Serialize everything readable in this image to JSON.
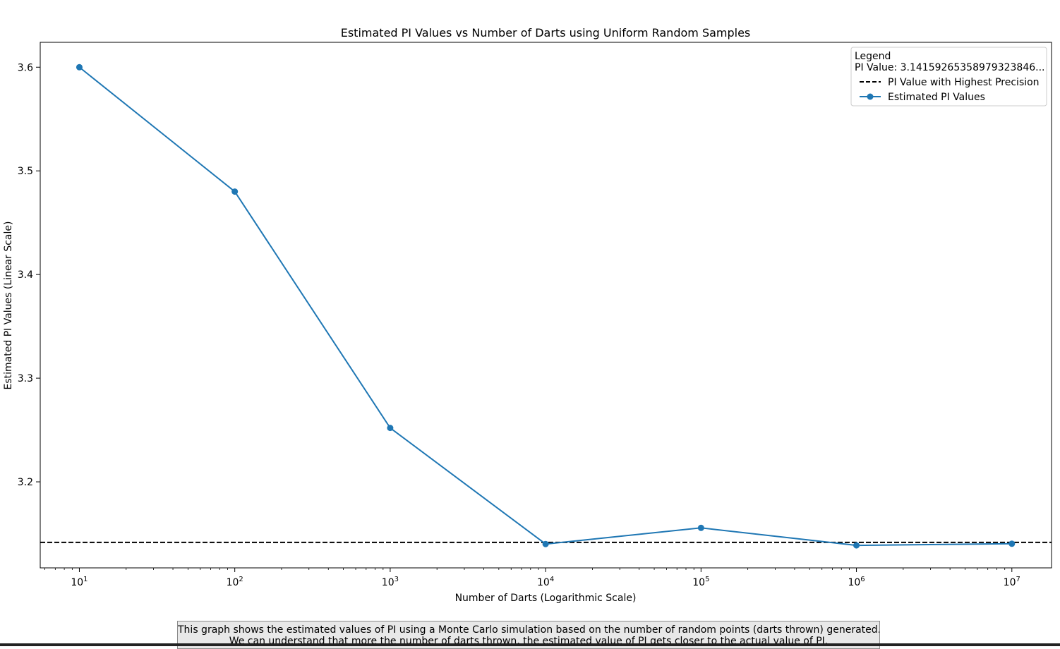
{
  "chart_data": {
    "type": "line",
    "title": "Estimated PI Values vs Number of Darts using Uniform Random Samples",
    "xlabel": "Number of Darts (Logarithmic Scale)",
    "ylabel": "Estimated PI Values (Linear Scale)",
    "xscale": "log",
    "xlim": [
      5.6,
      18000000
    ],
    "ylim": [
      3.117,
      3.624
    ],
    "x_ticks": [
      10,
      100,
      1000,
      10000,
      100000,
      1000000,
      10000000
    ],
    "x_tick_labels": [
      {
        "base": "10",
        "exp": "1"
      },
      {
        "base": "10",
        "exp": "2"
      },
      {
        "base": "10",
        "exp": "3"
      },
      {
        "base": "10",
        "exp": "4"
      },
      {
        "base": "10",
        "exp": "5"
      },
      {
        "base": "10",
        "exp": "6"
      },
      {
        "base": "10",
        "exp": "7"
      }
    ],
    "y_ticks": [
      3.2,
      3.3,
      3.4,
      3.5,
      3.6
    ],
    "y_tick_labels": [
      "3.2",
      "3.3",
      "3.4",
      "3.5",
      "3.6"
    ],
    "grid": false,
    "series": [
      {
        "name": "Estimated PI Values",
        "color": "#1f77b4",
        "marker": "circle",
        "x": [
          10,
          100,
          1000,
          10000,
          100000,
          1000000,
          10000000
        ],
        "y": [
          3.6,
          3.48,
          3.252,
          3.14,
          3.1556,
          3.1387,
          3.1403
        ]
      }
    ],
    "reference_lines": [
      {
        "name": "PI Value with Highest Precision",
        "y": 3.141592653589793,
        "color": "#000000",
        "style": "dashed"
      }
    ],
    "legend": {
      "position": "top-right",
      "title": "Legend",
      "subtitle": "PI Value: 3.14159265358979323846..."
    },
    "caption": {
      "line1": "This graph shows the estimated values of PI using a Monte Carlo simulation based on the number of random points (darts thrown) generated.",
      "line2": "We can understand that more the number of darts thrown, the estimated value of PI gets closer to the actual value of PI."
    }
  }
}
